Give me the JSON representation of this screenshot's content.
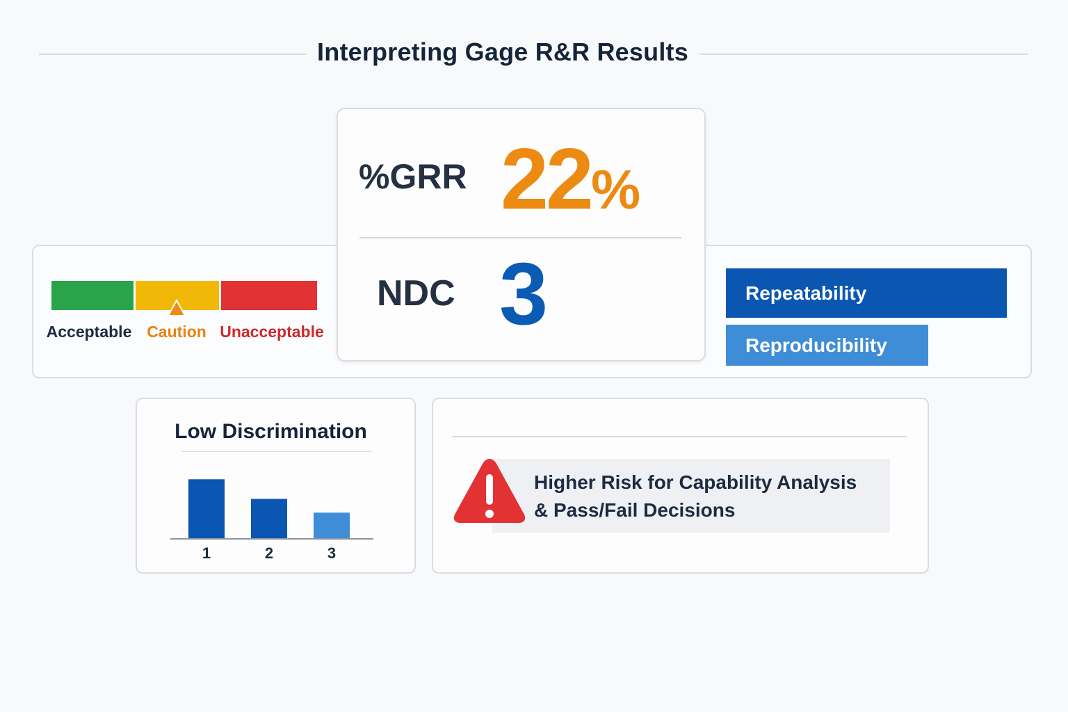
{
  "title": "Interpreting Gage R&R Results",
  "grr": {
    "label": "%GRR",
    "value": "22%",
    "color": "#ec8a12"
  },
  "ndc": {
    "label": "NDC",
    "value": "3",
    "color": "#0a5bb4"
  },
  "scale": {
    "segments": [
      {
        "label": "Acceptable",
        "color": "#2aa44a",
        "label_color": "#1c2b40"
      },
      {
        "label": "Caution",
        "color": "#f2b807",
        "label_color": "#e8820f"
      },
      {
        "label": "Unacceptable",
        "color": "#e23234",
        "label_color": "#cc2a2a"
      }
    ],
    "marker_color": "#f08a12"
  },
  "variance_components": [
    {
      "label": "Repeatability",
      "share": 1.0,
      "color": "#0a56b0"
    },
    {
      "label": "Reproducibility",
      "share": 0.72,
      "color": "#3f8dd6"
    }
  ],
  "discrimination": {
    "title": "Low Discrimination",
    "chart_data": {
      "type": "bar",
      "categories": [
        "1",
        "2",
        "3"
      ],
      "values": [
        3,
        2,
        1.3
      ],
      "colors": [
        "#0a56b0",
        "#0a56b0",
        "#3f8dd6"
      ],
      "ylim": [
        0,
        3.4
      ]
    }
  },
  "risk": {
    "icon": "warning-triangle-icon",
    "icon_color": "#e23234",
    "line1": "Higher Risk for Capability Analysis",
    "line2": "& Pass/Fail Decisions"
  }
}
